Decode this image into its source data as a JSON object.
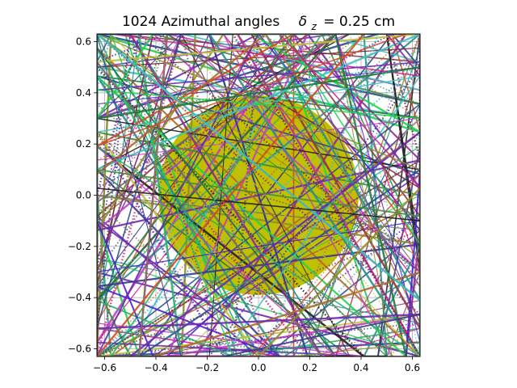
{
  "chart_data": {
    "type": "line",
    "title_text": "1024 Azimuthal angles",
    "title_math_symbol": "δ",
    "title_math_subscript": "z",
    "title_math_value": "= 0.25 cm",
    "xlabel": "",
    "ylabel": "",
    "xlim": [
      -0.63,
      0.63
    ],
    "ylim": [
      -0.63,
      0.63
    ],
    "xticks": [
      -0.6,
      -0.4,
      -0.2,
      0.0,
      0.2,
      0.4,
      0.6
    ],
    "yticks": [
      -0.6,
      -0.4,
      -0.2,
      0.0,
      0.2,
      0.4,
      0.6
    ],
    "xtick_labels": [
      "−0.6",
      "−0.4",
      "−0.2",
      "0.0",
      "0.2",
      "0.4",
      "0.6"
    ],
    "ytick_labels": [
      "−0.6",
      "−0.4",
      "−0.2",
      "0.0",
      "0.2",
      "0.4",
      "0.6"
    ],
    "grid": true,
    "fuel_region": {
      "shape": "circle",
      "center": [
        0.0,
        0.0
      ],
      "radius": 0.39,
      "color": "#c0c000"
    },
    "track_series": {
      "description_visible": "characteristic tracks drawn as many colored chords across the square domain",
      "palette": [
        "#1f1f1f",
        "#7a1f3d",
        "#2a4d8f",
        "#1f7a3a",
        "#8f2a8f",
        "#2a8f8f",
        "#8f8f2a",
        "#d14a1f",
        "#4a1fd1",
        "#1fd14a",
        "#d11f8f",
        "#6a6a6a",
        "#b06a2a",
        "#2ab06a",
        "#6a2ab0",
        "#c0c040",
        "#40c0c0",
        "#c040c0",
        "#3a3a8f",
        "#8f3a3a",
        "#3a8f3a"
      ]
    }
  }
}
